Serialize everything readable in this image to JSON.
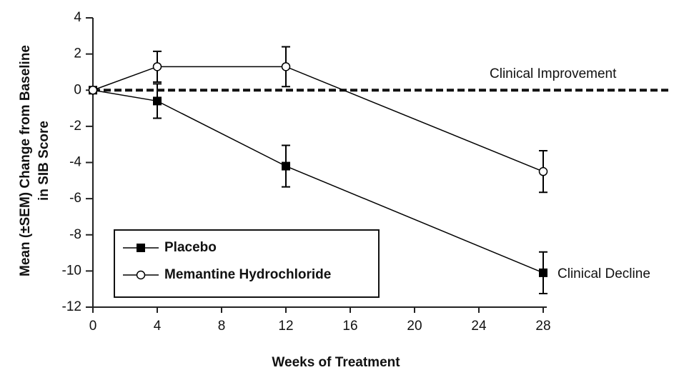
{
  "chart_data": {
    "type": "line",
    "xlabel": "Weeks of Treatment",
    "ylabel": [
      "Mean (±SEM) Change from Baseline",
      "in SIB Score"
    ],
    "x": [
      0,
      4,
      12,
      28
    ],
    "series": [
      {
        "name": "Placebo",
        "color": "#000000",
        "marker": "square",
        "values": [
          0,
          -0.6,
          -4.2,
          -10.1
        ],
        "errors": [
          null,
          0.95,
          1.15,
          1.15
        ]
      },
      {
        "name": "Memantine Hydrochloride",
        "color": "#000000",
        "marker": "circle",
        "values": [
          0,
          1.3,
          1.3,
          -4.5
        ],
        "errors": [
          null,
          0.85,
          1.1,
          1.15
        ]
      }
    ],
    "xlim": [
      0,
      28
    ],
    "xticks": [
      0,
      4,
      8,
      12,
      16,
      20,
      24,
      28
    ],
    "ylim": [
      -12,
      4
    ],
    "yticks": [
      4,
      2,
      0,
      -2,
      -4,
      -6,
      -8,
      -10,
      -12
    ],
    "reference_line": 0,
    "annotations": [
      "Clinical Improvement",
      "Clinical Decline"
    ],
    "legend": "lower left",
    "grid": false
  }
}
